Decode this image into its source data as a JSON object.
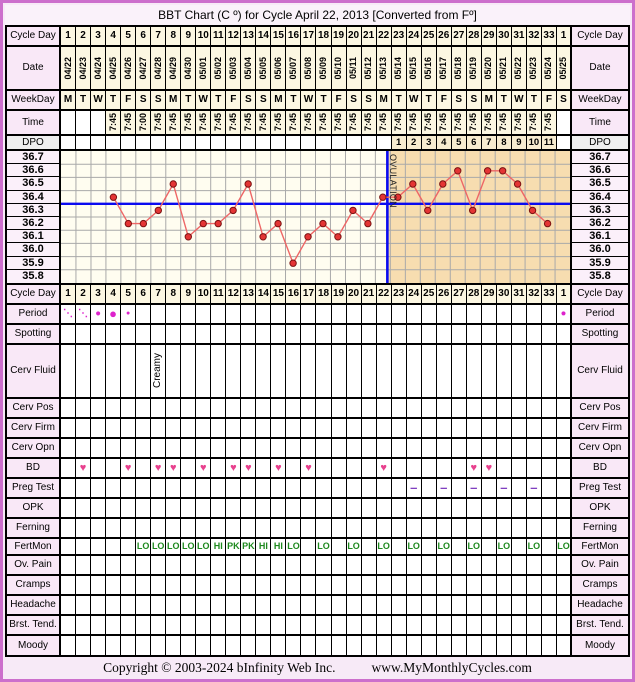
{
  "title": "BBT Chart (C º) for Cycle April 22, 2013  [Converted from Fº]",
  "grid": {
    "cycle_day_label": "Cycle Day",
    "date_label": "Date",
    "weekday_label": "WeekDay",
    "time_label": "Time",
    "dpo_label": "DPO",
    "cycle_days": [
      "1",
      "2",
      "3",
      "4",
      "5",
      "6",
      "7",
      "8",
      "9",
      "10",
      "11",
      "12",
      "13",
      "14",
      "15",
      "16",
      "17",
      "18",
      "19",
      "20",
      "21",
      "22",
      "23",
      "24",
      "25",
      "26",
      "27",
      "28",
      "29",
      "30",
      "31",
      "32",
      "33",
      "1"
    ],
    "dates": [
      "04/22",
      "04/23",
      "04/24",
      "04/25",
      "04/26",
      "04/27",
      "04/28",
      "04/29",
      "04/30",
      "05/01",
      "05/02",
      "05/03",
      "05/04",
      "05/05",
      "05/06",
      "05/07",
      "05/08",
      "05/09",
      "05/10",
      "05/11",
      "05/12",
      "05/13",
      "05/14",
      "05/15",
      "05/16",
      "05/17",
      "05/18",
      "05/19",
      "05/20",
      "05/21",
      "05/22",
      "05/23",
      "05/24",
      "05/25"
    ],
    "weekdays": [
      "M",
      "T",
      "W",
      "T",
      "F",
      "S",
      "S",
      "M",
      "T",
      "W",
      "T",
      "F",
      "S",
      "S",
      "M",
      "T",
      "W",
      "T",
      "F",
      "S",
      "S",
      "M",
      "T",
      "W",
      "T",
      "F",
      "S",
      "S",
      "M",
      "T",
      "W",
      "T",
      "F",
      "S"
    ],
    "times": [
      "",
      "",
      "",
      "7:45",
      "7:45",
      "7:00",
      "7:45",
      "7:45",
      "7:45",
      "7:45",
      "7:45",
      "7:45",
      "7:45",
      "7:45",
      "7:45",
      "7:45",
      "7:45",
      "7:45",
      "7:45",
      "7:45",
      "7:45",
      "7:45",
      "7:45",
      "7:45",
      "7:45",
      "7:45",
      "7:45",
      "7:45",
      "7:45",
      "7:45",
      "7:45",
      "7:45",
      "7:45",
      ""
    ],
    "dpo": [
      "",
      "",
      "",
      "",
      "",
      "",
      "",
      "",
      "",
      "",
      "",
      "",
      "",
      "",
      "",
      "",
      "",
      "",
      "",
      "",
      "",
      "",
      "1",
      "2",
      "3",
      "4",
      "5",
      "6",
      "7",
      "8",
      "9",
      "10",
      "11",
      ""
    ]
  },
  "chart_data": {
    "type": "line",
    "title": "BBT (°C) by cycle day",
    "y_ticks": [
      "36.7",
      "36.6",
      "36.5",
      "36.4",
      "36.3",
      "36.2",
      "36.1",
      "36.0",
      "35.9",
      "35.8"
    ],
    "ylim": [
      35.75,
      36.75
    ],
    "days": [
      4,
      5,
      6,
      7,
      8,
      9,
      10,
      11,
      12,
      13,
      14,
      15,
      16,
      17,
      18,
      19,
      20,
      21,
      22,
      23,
      24,
      25,
      26,
      27,
      28,
      29,
      30,
      31,
      32,
      33
    ],
    "temps_c": [
      36.4,
      36.2,
      36.2,
      36.3,
      36.5,
      36.1,
      36.2,
      36.2,
      36.3,
      36.5,
      36.1,
      36.2,
      35.9,
      36.1,
      36.2,
      36.1,
      36.3,
      36.2,
      36.4,
      36.4,
      36.5,
      36.3,
      36.5,
      36.6,
      36.3,
      36.6,
      36.6,
      36.5,
      36.3,
      36.2
    ],
    "coverline_c": 36.35,
    "ovulation_after_day": 22,
    "ovulation_label": "OVULATION",
    "dpo_start_day": 23,
    "dpo_count": 11,
    "grid_on": true,
    "line_color": "#ee6666",
    "point_color": "#e43434",
    "point_edge_color": "#7a1212",
    "blue_line_color": "#0a0af0",
    "grid_color": "#a9a9a9",
    "follicular_bg": "#fffdf0",
    "luteal_bg": "#f7ddb0"
  },
  "rows": [
    {
      "id": "cycle_day_2",
      "label": "Cycle Day",
      "type": "header"
    },
    {
      "id": "period",
      "label": "Period",
      "type": "period",
      "values": [
        "dots",
        "dots",
        "m",
        "l",
        "s",
        "",
        "",
        "",
        "",
        "",
        "",
        "",
        "",
        "",
        "",
        "",
        "",
        "",
        "",
        "",
        "",
        "",
        "",
        "",
        "",
        "",
        "",
        "",
        "",
        "",
        "",
        "",
        "",
        "m"
      ]
    },
    {
      "id": "spotting",
      "label": "Spotting",
      "type": "empty"
    },
    {
      "id": "cerv_fluid",
      "label": "Cerv Fluid",
      "type": "vtext",
      "values": [
        "",
        "",
        "",
        "",
        "",
        "",
        "Creamy",
        "",
        "",
        "",
        "",
        "",
        "",
        "",
        "",
        "",
        "",
        "",
        "",
        "",
        "",
        "",
        "",
        "",
        "",
        "",
        "",
        "",
        "",
        "",
        "",
        "",
        "",
        ""
      ]
    },
    {
      "id": "cerv_pos",
      "label": "Cerv Pos",
      "type": "empty"
    },
    {
      "id": "cerv_firm",
      "label": "Cerv Firm",
      "type": "empty"
    },
    {
      "id": "cerv_opn",
      "label": "Cerv Opn",
      "type": "empty"
    },
    {
      "id": "bd",
      "label": "BD",
      "type": "marks",
      "mark": "heart",
      "days": [
        2,
        5,
        7,
        8,
        10,
        12,
        13,
        15,
        17,
        22,
        28,
        29
      ]
    },
    {
      "id": "preg_test",
      "label": "Preg Test",
      "type": "marks",
      "mark": "dash",
      "days": [
        24,
        26,
        28,
        30,
        32
      ]
    },
    {
      "id": "opk",
      "label": "OPK",
      "type": "empty"
    },
    {
      "id": "ferning",
      "label": "Ferning",
      "type": "empty"
    },
    {
      "id": "fertmon",
      "label": "FertMon",
      "type": "fertmon",
      "values": [
        "",
        "",
        "",
        "",
        "",
        "LO",
        "LO",
        "LO",
        "LO",
        "LO",
        "HI",
        "PK",
        "PK",
        "HI",
        "HI",
        "LO",
        "",
        "LO",
        "",
        "LO",
        "",
        "LO",
        "",
        "LO",
        "",
        "LO",
        "",
        "LO",
        "",
        "LO",
        "",
        "LO",
        "",
        "LO"
      ]
    },
    {
      "id": "ov_pain",
      "label": "Ov. Pain",
      "type": "empty"
    },
    {
      "id": "cramps",
      "label": "Cramps",
      "type": "empty"
    },
    {
      "id": "headache",
      "label": "Headache",
      "type": "empty"
    },
    {
      "id": "brst_tend",
      "label": "Brst. Tend.",
      "type": "empty"
    },
    {
      "id": "moody",
      "label": "Moody",
      "type": "empty"
    }
  ],
  "footer": {
    "copyright": "Copyright © 2003-2024 bInfinity Web Inc.",
    "site": "www.MyMonthlyCycles.com"
  },
  "colors": {
    "window_border": "#cc6fcc",
    "window_bg": "#f7eaf7",
    "label_bg": "#f9e8f7",
    "header_cell_bg": "#fcf7e2",
    "dpo_label_bg": "#efefef",
    "dpo_cell_bg": "#f7ecd0",
    "period_mark": "#dd22cc",
    "bd_heart": "#e8418e",
    "preg_test_dash": "#8040c0",
    "fertmon_text": "#1e8a1e"
  }
}
